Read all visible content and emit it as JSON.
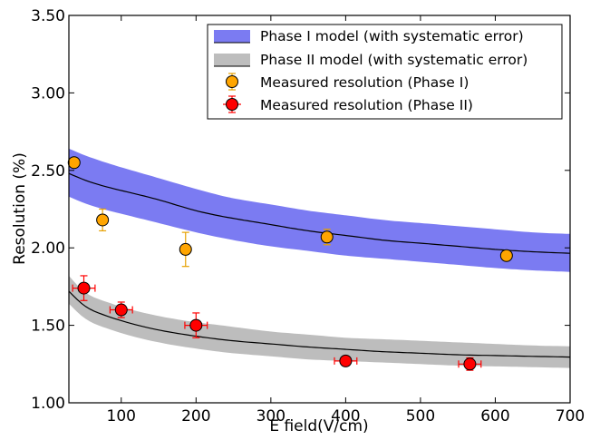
{
  "chart_data": {
    "type": "scatter",
    "xlabel": "E field(V/cm)",
    "ylabel": "Resolution (%)",
    "xlim": [
      30,
      700
    ],
    "ylim": [
      1.0,
      3.5
    ],
    "xticks": [
      100,
      200,
      300,
      400,
      500,
      600,
      700
    ],
    "xtick_labels": [
      "100",
      "200",
      "300",
      "400",
      "500",
      "600",
      "700"
    ],
    "yticks": [
      1.0,
      1.5,
      2.0,
      2.5,
      3.0,
      3.5
    ],
    "ytick_labels": [
      "1.00",
      "1.50",
      "2.00",
      "2.50",
      "3.00",
      "3.50"
    ],
    "grid": false,
    "legend_position": "top-right",
    "models": [
      {
        "name": "Phase I model (with systematic error)",
        "color": "#7b7bf2",
        "x": [
          30,
          50,
          100,
          150,
          200,
          250,
          300,
          350,
          400,
          450,
          500,
          550,
          600,
          650,
          700
        ],
        "center": [
          2.48,
          2.44,
          2.37,
          2.31,
          2.24,
          2.19,
          2.15,
          2.11,
          2.08,
          2.05,
          2.03,
          2.01,
          1.99,
          1.975,
          1.965
        ],
        "upper": [
          2.64,
          2.6,
          2.52,
          2.45,
          2.38,
          2.32,
          2.28,
          2.24,
          2.21,
          2.18,
          2.16,
          2.14,
          2.12,
          2.1,
          2.09
        ],
        "lower": [
          2.33,
          2.29,
          2.22,
          2.16,
          2.1,
          2.05,
          2.01,
          1.98,
          1.95,
          1.93,
          1.91,
          1.89,
          1.87,
          1.855,
          1.845
        ]
      },
      {
        "name": "Phase II model (with systematic error)",
        "color": "#bdbdbd",
        "x": [
          30,
          50,
          75,
          100,
          150,
          200,
          250,
          300,
          350,
          400,
          450,
          500,
          550,
          600,
          650,
          700
        ],
        "center": [
          1.72,
          1.63,
          1.57,
          1.53,
          1.47,
          1.43,
          1.4,
          1.38,
          1.36,
          1.345,
          1.33,
          1.32,
          1.31,
          1.305,
          1.3,
          1.295
        ],
        "upper": [
          1.82,
          1.72,
          1.66,
          1.62,
          1.56,
          1.52,
          1.49,
          1.46,
          1.44,
          1.42,
          1.41,
          1.4,
          1.39,
          1.38,
          1.37,
          1.365
        ],
        "lower": [
          1.64,
          1.55,
          1.49,
          1.45,
          1.39,
          1.35,
          1.32,
          1.3,
          1.28,
          1.27,
          1.26,
          1.25,
          1.24,
          1.235,
          1.23,
          1.225
        ]
      }
    ],
    "series": [
      {
        "name": "Measured resolution (Phase I)",
        "color": "#ffa500",
        "errcolor": "#e6a000",
        "points": [
          {
            "x": 37,
            "y": 2.55,
            "yerr": 0.0,
            "xerr": 0
          },
          {
            "x": 75,
            "y": 2.18,
            "yerr": 0.07,
            "xerr": 0
          },
          {
            "x": 186,
            "y": 1.99,
            "yerr": 0.11,
            "xerr": 0
          },
          {
            "x": 375,
            "y": 2.07,
            "yerr": 0.05,
            "xerr": 0
          },
          {
            "x": 615,
            "y": 1.95,
            "yerr": 0.02,
            "xerr": 0
          }
        ]
      },
      {
        "name": "Measured resolution (Phase II)",
        "color": "#ff0000",
        "errcolor": "#ff0000",
        "points": [
          {
            "x": 50,
            "y": 1.74,
            "yerr": 0.08,
            "xerr": 15
          },
          {
            "x": 100,
            "y": 1.6,
            "yerr": 0.05,
            "xerr": 15
          },
          {
            "x": 200,
            "y": 1.5,
            "yerr": 0.08,
            "xerr": 15
          },
          {
            "x": 400,
            "y": 1.27,
            "yerr": 0.03,
            "xerr": 15
          },
          {
            "x": 566,
            "y": 1.25,
            "yerr": 0.04,
            "xerr": 15
          }
        ]
      }
    ]
  }
}
